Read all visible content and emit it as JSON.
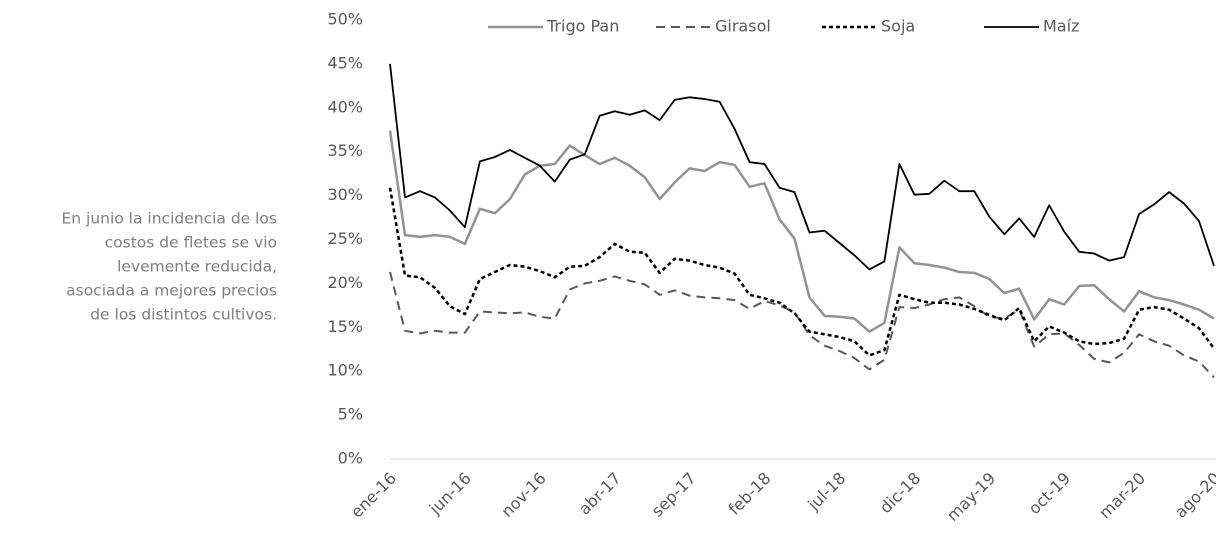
{
  "chart_data": {
    "type": "line",
    "annotation": [
      "En junio la incidencia de los",
      "costos de fletes se vio",
      "levemente reducida,",
      "asociada a mejores precios",
      "de los distintos cultivos."
    ],
    "categories": [
      "ene-16",
      null,
      null,
      null,
      null,
      "jun-16",
      null,
      null,
      null,
      null,
      "nov-16",
      null,
      null,
      null,
      null,
      "abr-17",
      null,
      null,
      null,
      null,
      "sep-17",
      null,
      null,
      null,
      null,
      "feb-18",
      null,
      null,
      null,
      null,
      "jul-18",
      null,
      null,
      null,
      null,
      "dic-18",
      null,
      null,
      null,
      null,
      "may-19",
      null,
      null,
      null,
      null,
      "oct-19",
      null,
      null,
      null,
      null,
      "mar-20",
      null,
      null,
      null,
      null,
      "ago-20"
    ],
    "ylim": [
      0,
      50
    ],
    "yticks": [
      {
        "value": 0,
        "label": "0%"
      },
      {
        "value": 5,
        "label": "5%"
      },
      {
        "value": 10,
        "label": "10%"
      },
      {
        "value": 15,
        "label": "15%"
      },
      {
        "value": 20,
        "label": "20%"
      },
      {
        "value": 25,
        "label": "25%"
      },
      {
        "value": 30,
        "label": "30%"
      },
      {
        "value": 35,
        "label": "35%"
      },
      {
        "value": 40,
        "label": "40%"
      },
      {
        "value": 45,
        "label": "45%"
      },
      {
        "value": 50,
        "label": "50%"
      }
    ],
    "legend": "top",
    "series": [
      {
        "name": "Trigo Pan",
        "color": "#939393",
        "dash": "solid",
        "values": [
          37.4,
          25.5,
          25.3,
          25.5,
          25.3,
          24.5,
          28.5,
          28.0,
          29.6,
          32.4,
          33.4,
          33.6,
          35.7,
          34.6,
          33.6,
          34.3,
          33.4,
          32.1,
          29.6,
          31.5,
          33.1,
          32.8,
          33.8,
          33.5,
          31.0,
          31.4,
          27.3,
          25.1,
          18.4,
          16.3,
          16.2,
          16.0,
          14.5,
          15.5,
          24.1,
          22.3,
          22.1,
          21.8,
          21.3,
          21.2,
          20.5,
          18.9,
          19.4,
          15.9,
          18.2,
          17.6,
          19.7,
          19.8,
          18.2,
          16.8,
          19.1,
          18.4,
          18.1,
          17.6,
          17.0,
          16.0
        ]
      },
      {
        "name": "Girasol",
        "color": "#595959",
        "dash": "dashed",
        "values": [
          21.3,
          14.6,
          14.3,
          14.6,
          14.4,
          14.4,
          16.8,
          16.7,
          16.6,
          16.7,
          16.2,
          16.0,
          19.3,
          20.0,
          20.3,
          20.8,
          20.3,
          19.9,
          18.7,
          19.2,
          18.6,
          18.4,
          18.3,
          18.1,
          17.1,
          18.0,
          17.5,
          16.7,
          14.1,
          12.9,
          12.3,
          11.5,
          10.2,
          11.3,
          17.3,
          17.2,
          17.6,
          18.2,
          18.4,
          17.4,
          16.2,
          16.0,
          17.0,
          12.8,
          14.2,
          14.3,
          13.0,
          11.4,
          11.0,
          12.1,
          14.2,
          13.4,
          12.9,
          11.8,
          11.1,
          9.3
        ]
      },
      {
        "name": "Soja",
        "color": "#000000",
        "dash": "dotted",
        "values": [
          30.9,
          20.9,
          20.7,
          19.5,
          17.4,
          16.5,
          20.5,
          21.3,
          22.1,
          21.9,
          21.4,
          20.7,
          21.9,
          22.0,
          23.0,
          24.5,
          23.6,
          23.5,
          21.2,
          22.8,
          22.6,
          22.1,
          21.8,
          21.1,
          18.7,
          18.3,
          17.8,
          16.6,
          14.5,
          14.2,
          13.9,
          13.4,
          11.8,
          12.4,
          18.7,
          18.2,
          17.8,
          17.8,
          17.6,
          17.1,
          16.4,
          15.8,
          17.2,
          13.4,
          15.1,
          14.4,
          13.4,
          13.1,
          13.2,
          13.7,
          17.0,
          17.3,
          17.0,
          16.0,
          14.9,
          12.6
        ]
      },
      {
        "name": "Maíz",
        "color": "#000000",
        "dash": "solid",
        "values": [
          45.0,
          29.8,
          30.5,
          29.8,
          28.3,
          26.4,
          33.9,
          34.4,
          35.2,
          34.3,
          33.4,
          31.6,
          34.1,
          34.7,
          39.1,
          39.6,
          39.2,
          39.7,
          38.6,
          40.9,
          41.2,
          41.0,
          40.7,
          37.6,
          33.8,
          33.6,
          30.9,
          30.4,
          25.8,
          26.0,
          24.6,
          23.2,
          21.6,
          22.5,
          33.6,
          30.1,
          30.2,
          31.7,
          30.5,
          30.5,
          27.6,
          25.6,
          27.4,
          25.3,
          28.9,
          25.9,
          23.6,
          23.4,
          22.6,
          23.0,
          27.9,
          29.0,
          30.4,
          29.1,
          27.1,
          22.0
        ]
      }
    ]
  }
}
